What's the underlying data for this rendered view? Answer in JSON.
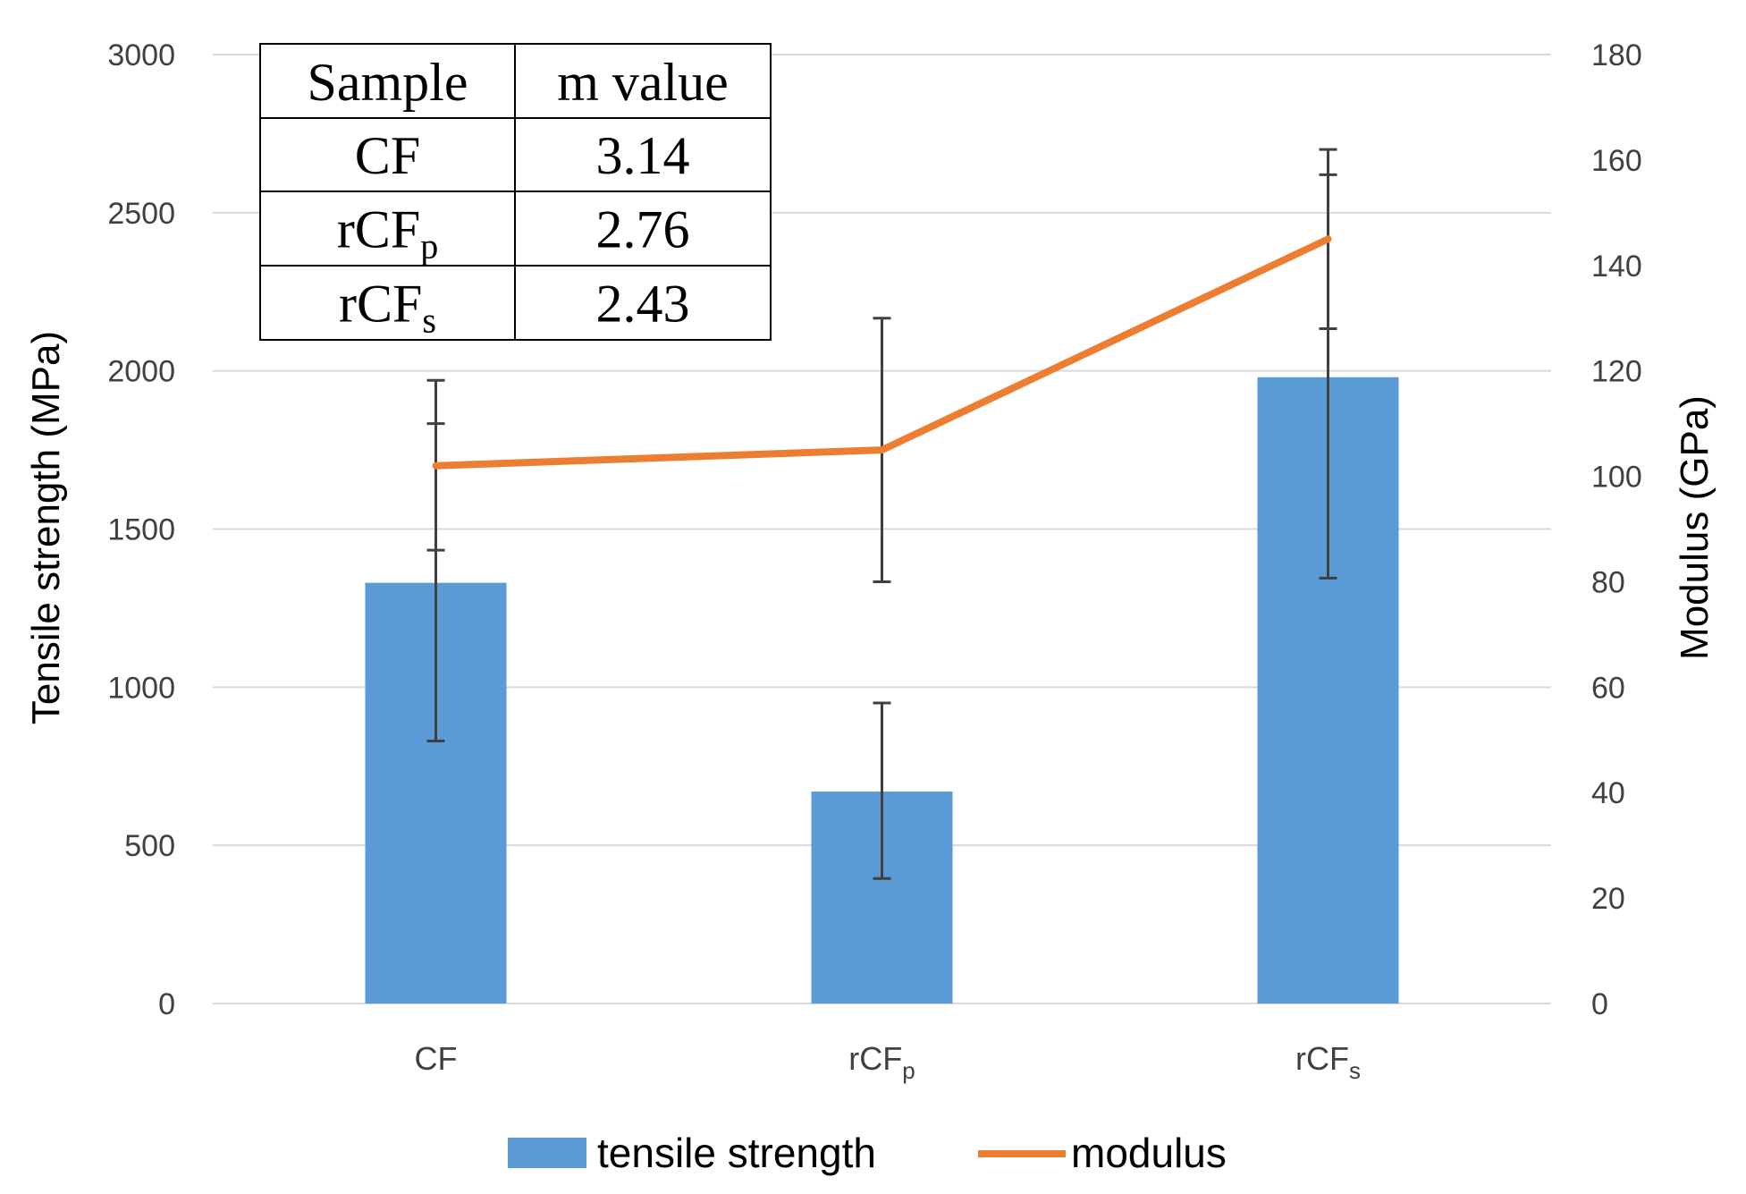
{
  "colors": {
    "bar": "#5b9bd5",
    "line": "#ed7d31",
    "grid": "#d9d9d9",
    "error": "#404040"
  },
  "chart_data": {
    "type": "bar",
    "categories": [
      {
        "base": "CF",
        "sub": ""
      },
      {
        "base": "rCF",
        "sub": "p"
      },
      {
        "base": "rCF",
        "sub": "s"
      }
    ],
    "series": [
      {
        "name": "tensile strength",
        "kind": "bar",
        "axis": "left",
        "values": [
          1330,
          670,
          1980
        ],
        "error_low": [
          830,
          395,
          1345
        ],
        "error_high": [
          1970,
          950,
          2620
        ]
      },
      {
        "name": "modulus",
        "kind": "line",
        "axis": "right",
        "values": [
          102,
          105,
          145
        ],
        "error_low": [
          86,
          80,
          128
        ],
        "error_high": [
          110,
          130,
          162
        ]
      }
    ],
    "ylabel": "Tensile strength (MPa)",
    "y2label": "Modulus (GPa)",
    "ylim": [
      0,
      3000
    ],
    "y2lim": [
      0,
      180
    ],
    "yticks": [
      "0",
      "500",
      "1000",
      "1500",
      "2000",
      "2500",
      "3000"
    ],
    "y2ticks": [
      "0",
      "20",
      "40",
      "60",
      "80",
      "100",
      "120",
      "140",
      "160",
      "180"
    ],
    "legend_position": "bottom",
    "grid": true
  },
  "inset_table": {
    "headers": [
      "Sample",
      "m value"
    ],
    "rows": [
      {
        "sample": "CF",
        "sample_sub": "",
        "m": "3.14"
      },
      {
        "sample": "rCF",
        "sample_sub": "p",
        "m": "2.76"
      },
      {
        "sample": "rCF",
        "sample_sub": "s",
        "m": "2.43"
      }
    ]
  }
}
